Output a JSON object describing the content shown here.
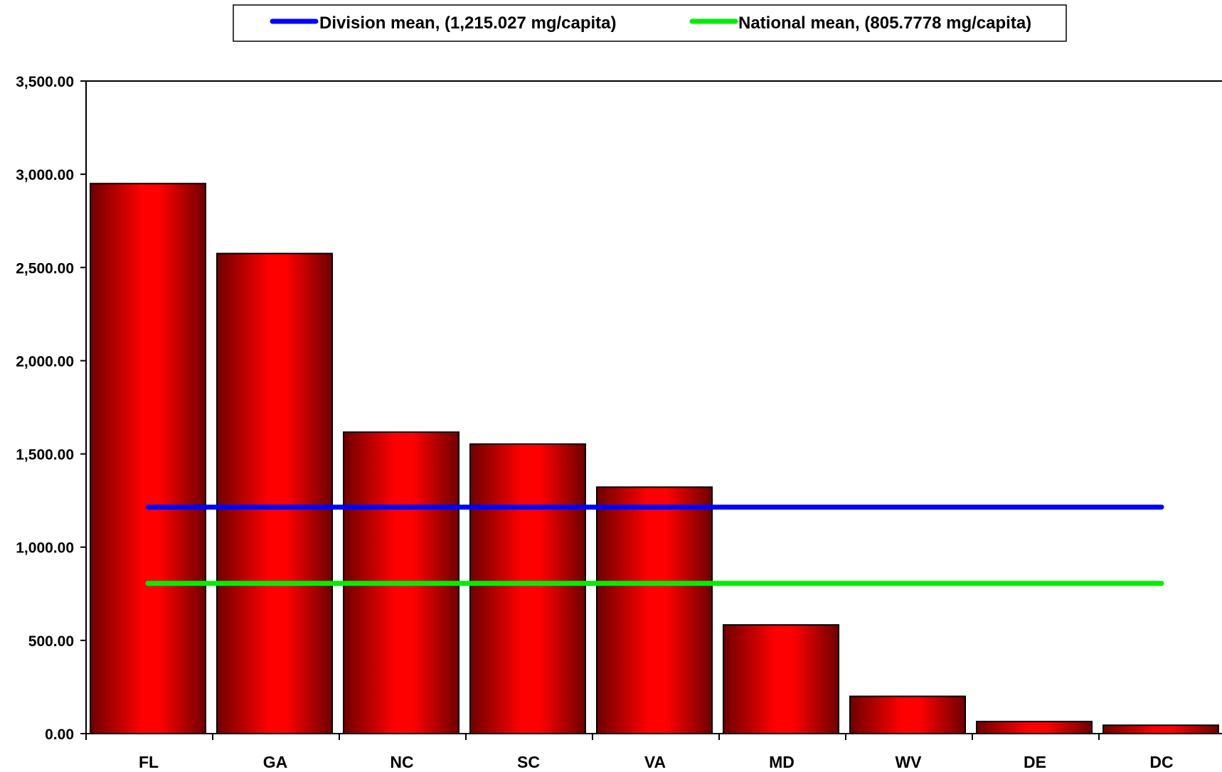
{
  "chart_data": {
    "type": "bar",
    "categories": [
      "FL",
      "GA",
      "NC",
      "SC",
      "VA",
      "MD",
      "WV",
      "DE",
      "DC"
    ],
    "values": [
      2950,
      2575,
      1617,
      1553,
      1322,
      583,
      200,
      65,
      45
    ],
    "ylim": [
      0,
      3500
    ],
    "yticks": [
      0,
      500,
      1000,
      1500,
      2000,
      2500,
      3000,
      3500
    ],
    "ytick_labels": [
      "0.00",
      "500.00",
      "1,000.00",
      "1,500.00",
      "2,000.00",
      "2,500.00",
      "3,000.00",
      "3,500.00"
    ],
    "grid": false,
    "legend_position": "top",
    "bar_color": "#ff0000",
    "bar_edge_color": "#5a0000",
    "reference_lines": [
      {
        "label": "Division mean, (1,215.027 mg/capita)",
        "value": 1215.027,
        "color": "#0000ff"
      },
      {
        "label": "National mean, (805.7778 mg/capita)",
        "value": 805.7778,
        "color": "#00ee00"
      }
    ]
  }
}
